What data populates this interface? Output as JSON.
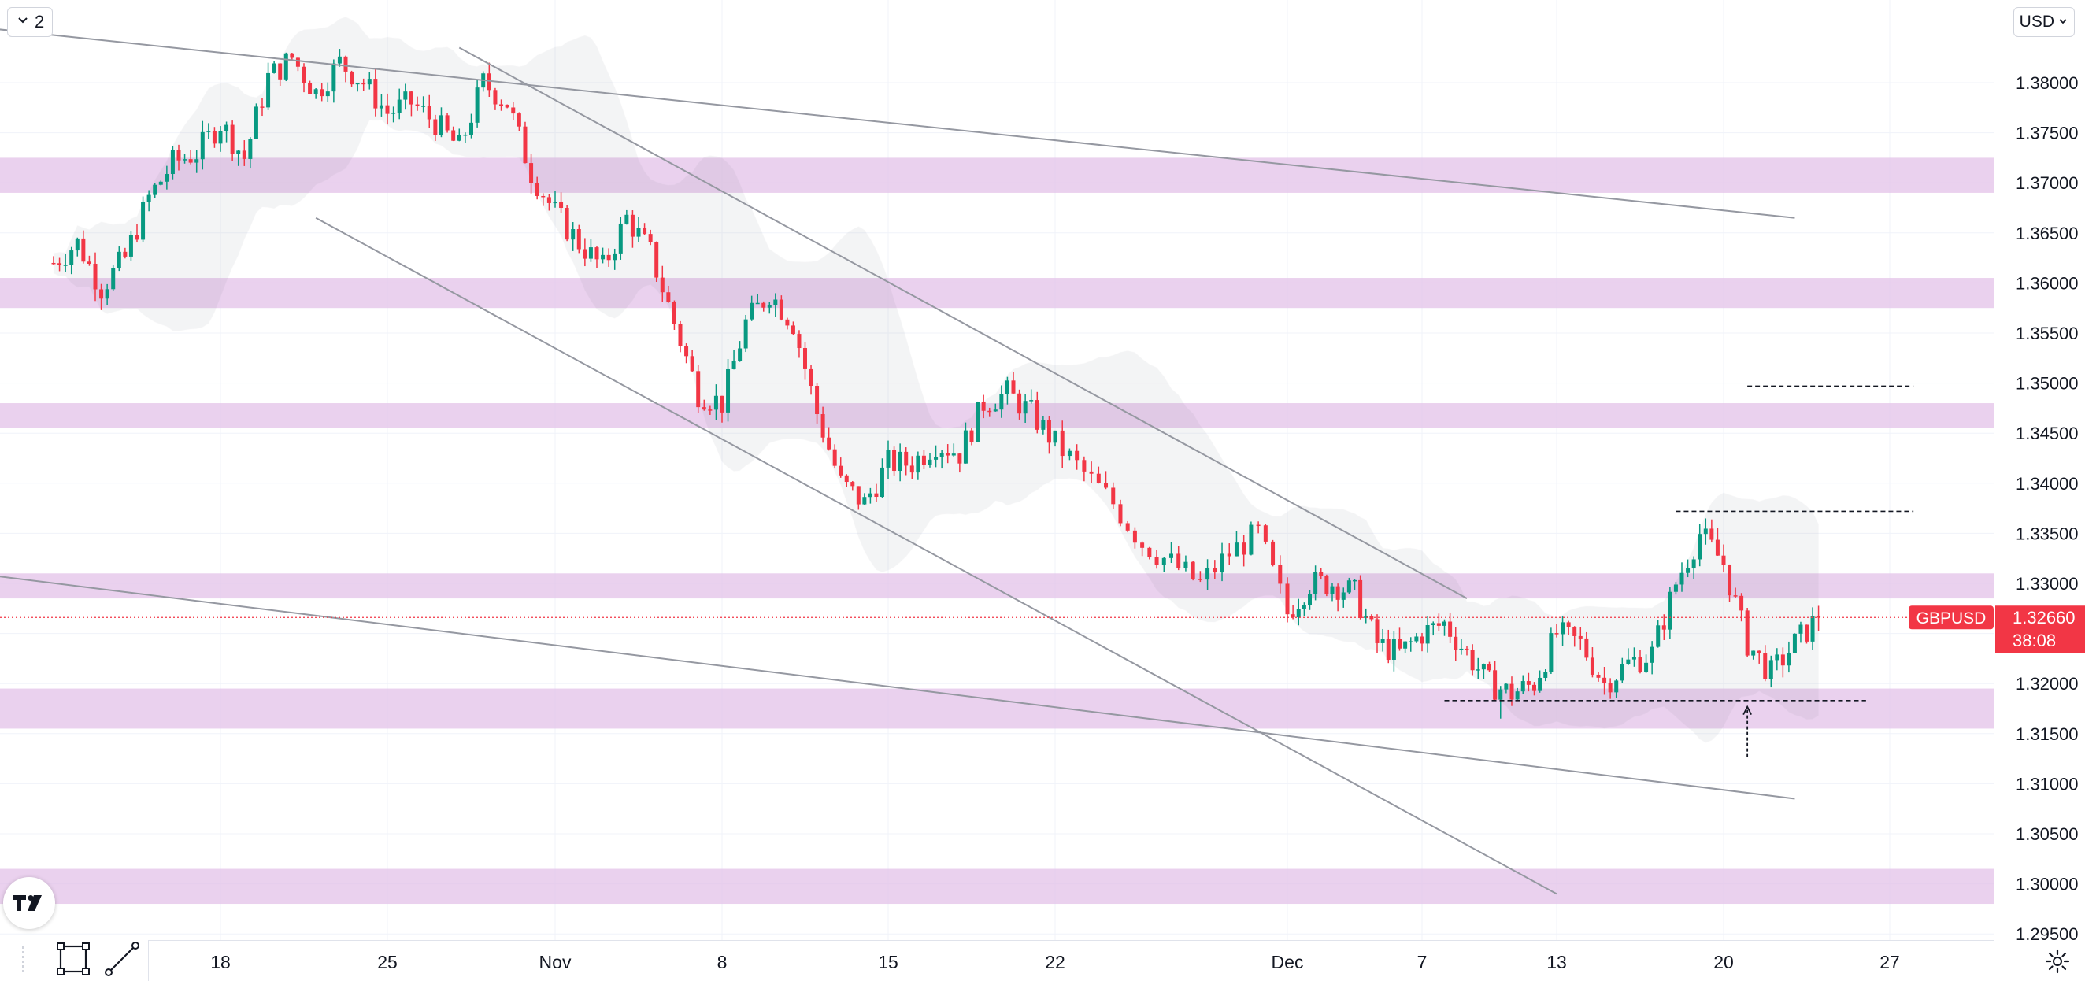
{
  "toolbar": {
    "interval_value": "2",
    "currency_label": "USD"
  },
  "symbol": {
    "name": "GBPUSD",
    "price": "1.32660",
    "countdown": "38:08",
    "color": "#f23645"
  },
  "icons": [
    "chevron-down-icon",
    "tradingview-logo-icon",
    "rectangle-tool-icon",
    "trend-line-tool-icon",
    "gear-icon"
  ],
  "chart_data": {
    "type": "candlestick",
    "title": "",
    "xlabel": "",
    "ylabel": "",
    "ylim": [
      1.29449,
      1.38416
    ],
    "x_ticks": [
      "18",
      "25",
      "Nov",
      "8",
      "15",
      "22",
      "Dec",
      "7",
      "13",
      "20",
      "27"
    ],
    "y_ticks": [
      "1.38000",
      "1.37500",
      "1.37000",
      "1.36500",
      "1.36000",
      "1.35500",
      "1.35000",
      "1.34500",
      "1.34000",
      "1.33500",
      "1.33000",
      "1.32500",
      "1.32000",
      "1.31500",
      "1.31000",
      "1.30500",
      "1.30000",
      "1.29500"
    ],
    "colors": {
      "up": "#089981",
      "down": "#f23645",
      "zone": "#e1bee7",
      "channel": "#9598a1",
      "band": "#d1d4dc"
    },
    "close_path": [
      [
        "Oct 11",
        1.362
      ],
      [
        "Oct 12",
        1.364
      ],
      [
        "Oct 13",
        1.3595
      ],
      [
        "Oct 14",
        1.3625
      ],
      [
        "Oct 15",
        1.3685
      ],
      [
        "Oct 16",
        1.372
      ],
      [
        "Oct 17",
        1.373
      ],
      [
        "Oct 18",
        1.376
      ],
      [
        "Oct 19",
        1.3725
      ],
      [
        "Oct 20",
        1.3805
      ],
      [
        "Oct 21",
        1.3825
      ],
      [
        "Oct 22",
        1.379
      ],
      [
        "Oct 23",
        1.382
      ],
      [
        "Oct 24",
        1.38
      ],
      [
        "Oct 25",
        1.377
      ],
      [
        "Oct 26",
        1.378
      ],
      [
        "Oct 27",
        1.376
      ],
      [
        "Oct 28",
        1.3735
      ],
      [
        "Oct 29",
        1.38
      ],
      [
        "Oct 30",
        1.378
      ],
      [
        "Oct 31",
        1.371
      ],
      [
        "Nov 1",
        1.367
      ],
      [
        "Nov 2",
        1.364
      ],
      [
        "Nov 3",
        1.3615
      ],
      [
        "Nov 4",
        1.3665
      ],
      [
        "Nov 5",
        1.363
      ],
      [
        "Nov 6",
        1.356
      ],
      [
        "Nov 7",
        1.349
      ],
      [
        "Nov 8",
        1.348
      ],
      [
        "Nov 9",
        1.356
      ],
      [
        "Nov 10",
        1.359
      ],
      [
        "Nov 11",
        1.356
      ],
      [
        "Nov 12",
        1.347
      ],
      [
        "Nov 13",
        1.34
      ],
      [
        "Nov 14",
        1.338
      ],
      [
        "Nov 15",
        1.342
      ],
      [
        "Nov 16",
        1.342
      ],
      [
        "Nov 17",
        1.344
      ],
      [
        "Nov 18",
        1.343
      ],
      [
        "Nov 19",
        1.348
      ],
      [
        "Nov 20",
        1.349
      ],
      [
        "Nov 21",
        1.347
      ],
      [
        "Nov 22",
        1.344
      ],
      [
        "Nov 23",
        1.341
      ],
      [
        "Nov 24",
        1.338
      ],
      [
        "Nov 25",
        1.334
      ],
      [
        "Nov 26",
        1.332
      ],
      [
        "Nov 27",
        1.33
      ],
      [
        "Nov 28",
        1.333
      ],
      [
        "Nov 29",
        1.335
      ],
      [
        "Nov 30",
        1.327
      ],
      [
        "Dec 1",
        1.33
      ],
      [
        "Dec 2",
        1.33
      ],
      [
        "Dec 3",
        1.329
      ],
      [
        "Dec 4",
        1.324
      ],
      [
        "Dec 5",
        1.323
      ],
      [
        "Dec 6",
        1.325
      ],
      [
        "Dec 7",
        1.326
      ],
      [
        "Dec 8",
        1.323
      ],
      [
        "Dec 9",
        1.32
      ],
      [
        "Dec 10",
        1.319
      ],
      [
        "Dec 11",
        1.32
      ],
      [
        "Dec 12",
        1.325
      ],
      [
        "Dec 13",
        1.324
      ],
      [
        "Dec 14",
        1.32
      ],
      [
        "Dec 15",
        1.322
      ],
      [
        "Dec 16",
        1.323
      ],
      [
        "Dec 17",
        1.33
      ],
      [
        "Dec 18",
        1.335
      ],
      [
        "Dec 19",
        1.332
      ],
      [
        "Dec 20",
        1.324
      ],
      [
        "Dec 21",
        1.321
      ],
      [
        "Dec 22",
        1.324
      ],
      [
        "Dec 23",
        1.3266
      ]
    ],
    "extremes": {
      "high": 1.383,
      "low": 1.3165
    },
    "zones": [
      [
        1.369,
        1.3725
      ],
      [
        1.3575,
        1.3605
      ],
      [
        1.3455,
        1.348
      ],
      [
        1.3285,
        1.331
      ],
      [
        1.3155,
        1.3195
      ],
      [
        1.298,
        1.3015
      ]
    ],
    "levels": [
      {
        "price": 1.3497,
        "from": "Dec 20",
        "to": "Dec 27"
      },
      {
        "price": 1.3372,
        "from": "Dec 17",
        "to": "Dec 27"
      },
      {
        "price": 1.3183,
        "from": "Dec 7",
        "to": "Dec 25"
      }
    ],
    "trendlines": [
      {
        "from": [
          "Oct 6",
          1.386
        ],
        "to": [
          "Dec 22",
          1.3665
        ]
      },
      {
        "from": [
          "Oct 28",
          1.3835
        ],
        "to": [
          "Dec 8",
          1.3285
        ]
      },
      {
        "from": [
          "Oct 22",
          1.3665
        ],
        "to": [
          "Dec 12",
          1.299
        ]
      },
      {
        "from": [
          "Oct 6",
          1.3315
        ],
        "to": [
          "Dec 22",
          1.3085
        ]
      }
    ],
    "marker": {
      "label": "arrow-up",
      "date": "Dec 20",
      "price": 1.318
    }
  }
}
